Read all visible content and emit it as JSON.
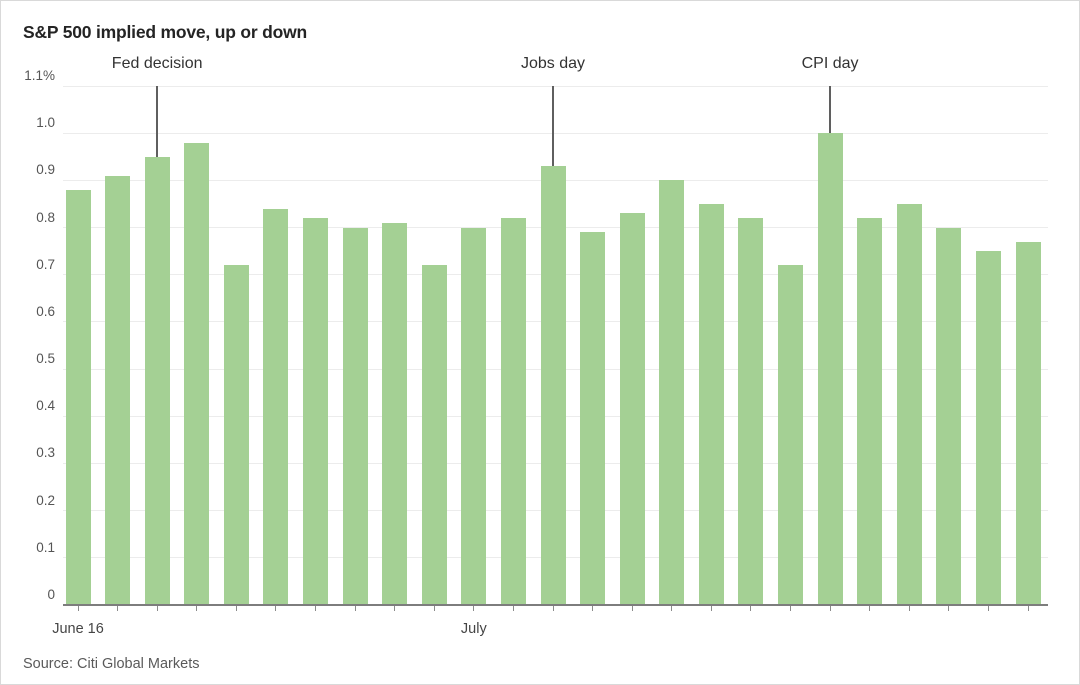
{
  "page": {
    "title": "S&P 500 implied move, up or down",
    "source": "Source: Citi Global Markets"
  },
  "chart_data": {
    "type": "bar",
    "title": "S&P 500 implied move, up or down",
    "unit": "percent",
    "values": [
      0.88,
      0.91,
      0.95,
      0.98,
      0.72,
      0.84,
      0.82,
      0.8,
      0.81,
      0.72,
      0.8,
      0.82,
      0.93,
      0.79,
      0.83,
      0.9,
      0.85,
      0.82,
      0.72,
      1.0,
      0.82,
      0.85,
      0.8,
      0.75,
      0.77
    ],
    "ylim": [
      0,
      1.1
    ],
    "ytick_values": [
      1.1,
      1.0,
      0.9,
      0.8,
      0.7,
      0.6,
      0.5,
      0.4,
      0.3,
      0.2,
      0.1,
      0
    ],
    "ytick_labels": [
      "1.1%",
      "1.0",
      "0.9",
      "0.8",
      "0.7",
      "0.6",
      "0.5",
      "0.4",
      "0.3",
      "0.2",
      "0.1",
      "0"
    ],
    "x_axis_labels": [
      {
        "label": "June 16",
        "bar_index": 0
      },
      {
        "label": "July",
        "bar_index": 10
      }
    ],
    "annotations": [
      {
        "label": "Fed decision",
        "bar_index": 2
      },
      {
        "label": "Jobs day",
        "bar_index": 12
      },
      {
        "label": "CPI day",
        "bar_index": 19
      }
    ],
    "grid": true,
    "legend": false,
    "bar_color": "#a4d094",
    "gridline_color": "#ececec",
    "axis_color": "#7d7d7d",
    "annotation_line_color": "#5f5f5f"
  }
}
